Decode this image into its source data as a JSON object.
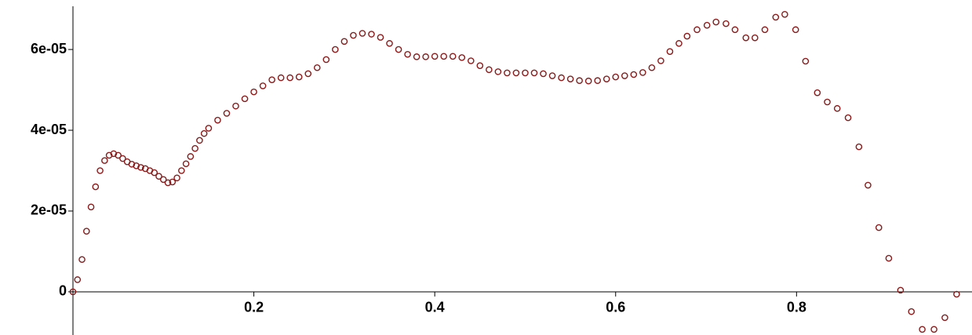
{
  "chart_data": {
    "type": "scatter",
    "series": [
      {
        "color": "#8b1a1a",
        "x": [
          0,
          0.005,
          0.01,
          0.015,
          0.02,
          0.025,
          0.03,
          0.035,
          0.04,
          0.045,
          0.05,
          0.055,
          0.06,
          0.065,
          0.07,
          0.075,
          0.08,
          0.085,
          0.09,
          0.095,
          0.1,
          0.105,
          0.11,
          0.115,
          0.12,
          0.125,
          0.13,
          0.135,
          0.14,
          0.145,
          0.15,
          0.16,
          0.17,
          0.18,
          0.19,
          0.2,
          0.21,
          0.22,
          0.23,
          0.24,
          0.25,
          0.26,
          0.27,
          0.28,
          0.29,
          0.3,
          0.31,
          0.32,
          0.33,
          0.34,
          0.35,
          0.36,
          0.37,
          0.38,
          0.39,
          0.4,
          0.41,
          0.42,
          0.43,
          0.44,
          0.45,
          0.46,
          0.47,
          0.48,
          0.49,
          0.5,
          0.51,
          0.52,
          0.53,
          0.54,
          0.55,
          0.56,
          0.57,
          0.58,
          0.59,
          0.6,
          0.61,
          0.62,
          0.63,
          0.64,
          0.65,
          0.66,
          0.67,
          0.679,
          0.69,
          0.701,
          0.711,
          0.722,
          0.732,
          0.744,
          0.754,
          0.765,
          0.777,
          0.787,
          0.799,
          0.81,
          0.823,
          0.834,
          0.845,
          0.857,
          0.869,
          0.879,
          0.891,
          0.902,
          0.915,
          0.927,
          0.939,
          0.952,
          0.964,
          0.977
        ],
        "values": [
          0,
          3e-06,
          8e-06,
          1.5e-05,
          2.1e-05,
          2.6e-05,
          3e-05,
          3.25e-05,
          3.38e-05,
          3.42e-05,
          3.38e-05,
          3.3e-05,
          3.22e-05,
          3.16e-05,
          3.12e-05,
          3.08e-05,
          3.05e-05,
          3e-05,
          2.95e-05,
          2.86e-05,
          2.78e-05,
          2.7e-05,
          2.72e-05,
          2.82e-05,
          3e-05,
          3.17e-05,
          3.35e-05,
          3.55e-05,
          3.75e-05,
          3.92e-05,
          4.05e-05,
          4.25e-05,
          4.42e-05,
          4.6e-05,
          4.78e-05,
          4.95e-05,
          5.1e-05,
          5.25e-05,
          5.3e-05,
          5.3e-05,
          5.32e-05,
          5.4e-05,
          5.55e-05,
          5.75e-05,
          6e-05,
          6.2e-05,
          6.35e-05,
          6.4e-05,
          6.38e-05,
          6.3e-05,
          6.15e-05,
          6e-05,
          5.88e-05,
          5.82e-05,
          5.82e-05,
          5.83e-05,
          5.83e-05,
          5.83e-05,
          5.8e-05,
          5.72e-05,
          5.6e-05,
          5.5e-05,
          5.45e-05,
          5.42e-05,
          5.42e-05,
          5.42e-05,
          5.42e-05,
          5.4e-05,
          5.35e-05,
          5.3e-05,
          5.27e-05,
          5.23e-05,
          5.22e-05,
          5.23e-05,
          5.27e-05,
          5.32e-05,
          5.35e-05,
          5.38e-05,
          5.43e-05,
          5.55e-05,
          5.72e-05,
          5.95e-05,
          6.15e-05,
          6.33e-05,
          6.49e-05,
          6.6e-05,
          6.68e-05,
          6.64e-05,
          6.49e-05,
          6.29e-05,
          6.29e-05,
          6.49e-05,
          6.8e-05,
          6.87e-05,
          6.49e-05,
          5.71e-05,
          4.93e-05,
          4.7e-05,
          4.54e-05,
          4.31e-05,
          3.59e-05,
          2.64e-05,
          1.59e-05,
          8.3e-06,
          4e-07,
          -4.9e-06,
          -9.3e-06,
          -9.3e-06,
          -6.4e-06,
          -6e-07
        ]
      }
    ],
    "xlim": [
      0,
      0.994
    ],
    "xticks": [
      0.2,
      0.4,
      0.6,
      0.8
    ],
    "ylim": [
      -1.07e-05,
      7.07e-05
    ],
    "yticks": [
      0,
      {
        "value": 2e-05,
        "label": "2e-05"
      },
      {
        "value": 4e-05,
        "label": "4e-05"
      },
      {
        "value": 6e-05,
        "label": "6e-05"
      }
    ]
  }
}
